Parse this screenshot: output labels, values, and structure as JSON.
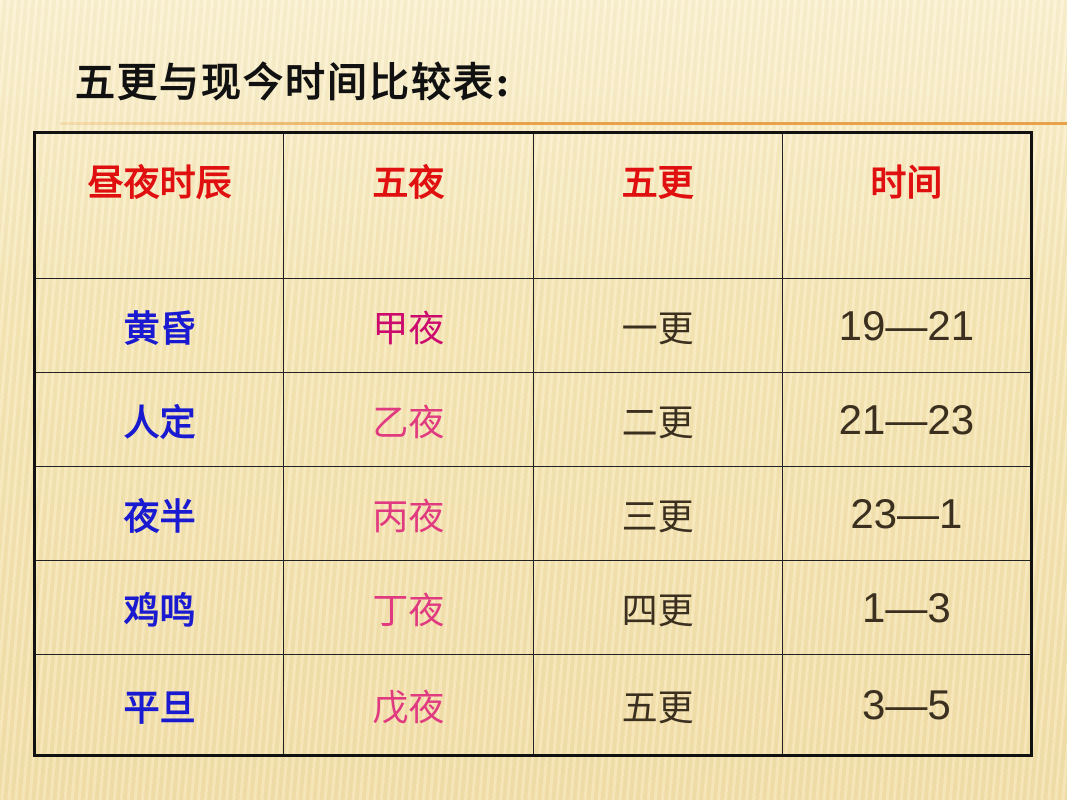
{
  "title": "五更与现今时间比较表:",
  "table": {
    "headers": [
      "昼夜时辰",
      "五夜",
      "五更",
      "时间"
    ],
    "rows": [
      [
        "黄昏",
        "甲夜",
        "一更",
        "19—21"
      ],
      [
        "人定",
        "乙夜",
        "二更",
        "21—23"
      ],
      [
        "夜半",
        "丙夜",
        "三更",
        "23—1"
      ],
      [
        "鸡鸣",
        "丁夜",
        "四更",
        "1—3"
      ],
      [
        "平旦",
        "戊夜",
        "五更",
        "3—5"
      ]
    ]
  },
  "colors": {
    "header": "#e01010",
    "col1": "#1a1ad0",
    "col2": "#e03a80",
    "col34": "#3b3020",
    "accent_rule": "#e8a24a"
  }
}
